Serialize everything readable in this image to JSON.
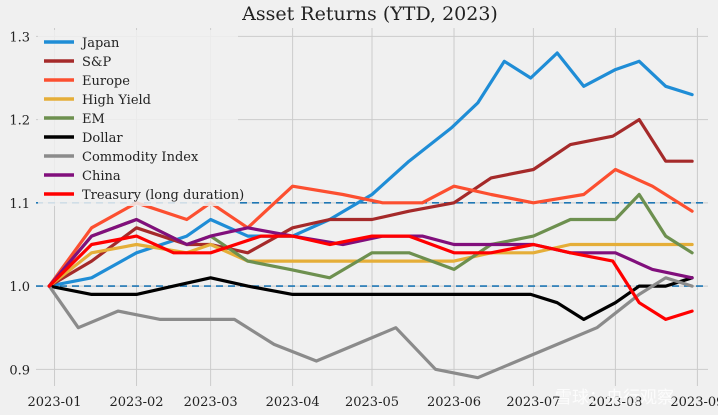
{
  "chart_data": {
    "type": "line",
    "title": "Asset Returns (YTD, 2023)",
    "xlabel": "",
    "ylabel": "",
    "x_ticks": [
      "2023-01",
      "2023-02",
      "2023-03",
      "2023-04",
      "2023-05",
      "2023-06",
      "2023-07",
      "2023-08",
      "2023-09"
    ],
    "x_range": [
      "2022-12-25",
      "2023-09-05"
    ],
    "ylim": [
      0.88,
      1.31
    ],
    "y_ticks": [
      "0.9",
      "1.0",
      "1.1",
      "1.2",
      "1.3"
    ],
    "y_tick_values": [
      0.9,
      1.0,
      1.1,
      1.2,
      1.3
    ],
    "grid": true,
    "legend_position": "top-left",
    "reference_lines": [
      {
        "y": 1.0,
        "style": "dashed",
        "color": "#1f77b4"
      },
      {
        "y": 1.1,
        "style": "dashed",
        "color": "#1f77b4"
      }
    ],
    "series": [
      {
        "name": "Japan",
        "color": "#1f8dd6",
        "points": [
          [
            "2022-12-30",
            1.0
          ],
          [
            "2023-01-15",
            1.01
          ],
          [
            "2023-02-01",
            1.04
          ],
          [
            "2023-02-20",
            1.06
          ],
          [
            "2023-03-01",
            1.08
          ],
          [
            "2023-03-15",
            1.06
          ],
          [
            "2023-04-01",
            1.06
          ],
          [
            "2023-04-15",
            1.08
          ],
          [
            "2023-05-01",
            1.11
          ],
          [
            "2023-05-15",
            1.15
          ],
          [
            "2023-05-31",
            1.19
          ],
          [
            "2023-06-10",
            1.22
          ],
          [
            "2023-06-20",
            1.27
          ],
          [
            "2023-06-30",
            1.25
          ],
          [
            "2023-07-10",
            1.28
          ],
          [
            "2023-07-20",
            1.24
          ],
          [
            "2023-08-01",
            1.26
          ],
          [
            "2023-08-10",
            1.27
          ],
          [
            "2023-08-20",
            1.24
          ],
          [
            "2023-08-30",
            1.23
          ]
        ]
      },
      {
        "name": "S&P",
        "color": "#a52a2a",
        "points": [
          [
            "2022-12-30",
            1.0
          ],
          [
            "2023-01-15",
            1.03
          ],
          [
            "2023-02-01",
            1.07
          ],
          [
            "2023-02-20",
            1.05
          ],
          [
            "2023-03-01",
            1.05
          ],
          [
            "2023-03-15",
            1.04
          ],
          [
            "2023-04-01",
            1.07
          ],
          [
            "2023-04-15",
            1.08
          ],
          [
            "2023-05-01",
            1.08
          ],
          [
            "2023-05-15",
            1.09
          ],
          [
            "2023-06-01",
            1.1
          ],
          [
            "2023-06-15",
            1.13
          ],
          [
            "2023-07-01",
            1.14
          ],
          [
            "2023-07-15",
            1.17
          ],
          [
            "2023-07-31",
            1.18
          ],
          [
            "2023-08-10",
            1.2
          ],
          [
            "2023-08-20",
            1.15
          ],
          [
            "2023-08-30",
            1.15
          ]
        ]
      },
      {
        "name": "Europe",
        "color": "#fc4f30",
        "points": [
          [
            "2022-12-30",
            1.0
          ],
          [
            "2023-01-15",
            1.07
          ],
          [
            "2023-02-01",
            1.1
          ],
          [
            "2023-02-20",
            1.08
          ],
          [
            "2023-03-01",
            1.1
          ],
          [
            "2023-03-15",
            1.07
          ],
          [
            "2023-04-01",
            1.12
          ],
          [
            "2023-04-20",
            1.11
          ],
          [
            "2023-05-05",
            1.1
          ],
          [
            "2023-05-20",
            1.1
          ],
          [
            "2023-06-01",
            1.12
          ],
          [
            "2023-06-15",
            1.11
          ],
          [
            "2023-07-01",
            1.1
          ],
          [
            "2023-07-20",
            1.11
          ],
          [
            "2023-08-01",
            1.14
          ],
          [
            "2023-08-15",
            1.12
          ],
          [
            "2023-08-30",
            1.09
          ]
        ]
      },
      {
        "name": "High Yield",
        "color": "#e5ae38",
        "points": [
          [
            "2022-12-30",
            1.0
          ],
          [
            "2023-01-15",
            1.04
          ],
          [
            "2023-02-01",
            1.05
          ],
          [
            "2023-02-20",
            1.04
          ],
          [
            "2023-03-01",
            1.05
          ],
          [
            "2023-03-15",
            1.03
          ],
          [
            "2023-04-01",
            1.03
          ],
          [
            "2023-04-15",
            1.03
          ],
          [
            "2023-05-01",
            1.03
          ],
          [
            "2023-05-15",
            1.03
          ],
          [
            "2023-06-01",
            1.03
          ],
          [
            "2023-06-15",
            1.04
          ],
          [
            "2023-07-01",
            1.04
          ],
          [
            "2023-07-15",
            1.05
          ],
          [
            "2023-08-01",
            1.05
          ],
          [
            "2023-08-15",
            1.05
          ],
          [
            "2023-08-30",
            1.05
          ]
        ]
      },
      {
        "name": "EM",
        "color": "#6d904f",
        "points": [
          [
            "2022-12-30",
            1.0
          ],
          [
            "2023-01-15",
            1.06
          ],
          [
            "2023-02-01",
            1.08
          ],
          [
            "2023-02-20",
            1.05
          ],
          [
            "2023-03-01",
            1.06
          ],
          [
            "2023-03-15",
            1.03
          ],
          [
            "2023-03-31",
            1.02
          ],
          [
            "2023-04-15",
            1.01
          ],
          [
            "2023-05-01",
            1.04
          ],
          [
            "2023-05-15",
            1.04
          ],
          [
            "2023-06-01",
            1.02
          ],
          [
            "2023-06-15",
            1.05
          ],
          [
            "2023-07-01",
            1.06
          ],
          [
            "2023-07-15",
            1.08
          ],
          [
            "2023-08-01",
            1.08
          ],
          [
            "2023-08-10",
            1.11
          ],
          [
            "2023-08-20",
            1.06
          ],
          [
            "2023-08-30",
            1.04
          ]
        ]
      },
      {
        "name": "Dollar",
        "color": "#000000",
        "points": [
          [
            "2022-12-30",
            1.0
          ],
          [
            "2023-01-15",
            0.99
          ],
          [
            "2023-02-01",
            0.99
          ],
          [
            "2023-02-15",
            1.0
          ],
          [
            "2023-03-01",
            1.01
          ],
          [
            "2023-03-15",
            1.0
          ],
          [
            "2023-04-01",
            0.99
          ],
          [
            "2023-04-15",
            0.99
          ],
          [
            "2023-05-01",
            0.99
          ],
          [
            "2023-05-15",
            0.99
          ],
          [
            "2023-06-01",
            0.99
          ],
          [
            "2023-06-15",
            0.99
          ],
          [
            "2023-06-30",
            0.99
          ],
          [
            "2023-07-10",
            0.98
          ],
          [
            "2023-07-20",
            0.96
          ],
          [
            "2023-08-01",
            0.98
          ],
          [
            "2023-08-10",
            1.0
          ],
          [
            "2023-08-20",
            1.0
          ],
          [
            "2023-08-30",
            1.01
          ]
        ]
      },
      {
        "name": "Commodity Index",
        "color": "#8b8b8b",
        "points": [
          [
            "2022-12-30",
            1.0
          ],
          [
            "2023-01-10",
            0.95
          ],
          [
            "2023-01-25",
            0.97
          ],
          [
            "2023-02-10",
            0.96
          ],
          [
            "2023-02-25",
            0.96
          ],
          [
            "2023-03-10",
            0.96
          ],
          [
            "2023-03-25",
            0.93
          ],
          [
            "2023-04-10",
            0.91
          ],
          [
            "2023-04-25",
            0.93
          ],
          [
            "2023-05-10",
            0.95
          ],
          [
            "2023-05-25",
            0.9
          ],
          [
            "2023-06-10",
            0.89
          ],
          [
            "2023-06-25",
            0.91
          ],
          [
            "2023-07-10",
            0.93
          ],
          [
            "2023-07-25",
            0.95
          ],
          [
            "2023-08-10",
            0.99
          ],
          [
            "2023-08-20",
            1.01
          ],
          [
            "2023-08-30",
            1.0
          ]
        ]
      },
      {
        "name": "China",
        "color": "#810f7c",
        "points": [
          [
            "2022-12-30",
            1.0
          ],
          [
            "2023-01-15",
            1.06
          ],
          [
            "2023-02-01",
            1.08
          ],
          [
            "2023-02-20",
            1.05
          ],
          [
            "2023-03-01",
            1.06
          ],
          [
            "2023-03-15",
            1.07
          ],
          [
            "2023-04-01",
            1.06
          ],
          [
            "2023-04-20",
            1.05
          ],
          [
            "2023-05-05",
            1.06
          ],
          [
            "2023-05-20",
            1.06
          ],
          [
            "2023-06-01",
            1.05
          ],
          [
            "2023-06-15",
            1.05
          ],
          [
            "2023-07-01",
            1.05
          ],
          [
            "2023-07-15",
            1.04
          ],
          [
            "2023-08-01",
            1.04
          ],
          [
            "2023-08-15",
            1.02
          ],
          [
            "2023-08-30",
            1.01
          ]
        ]
      },
      {
        "name": "Treasury (long duration)",
        "color": "#ff0000",
        "points": [
          [
            "2022-12-30",
            1.0
          ],
          [
            "2023-01-15",
            1.05
          ],
          [
            "2023-02-01",
            1.06
          ],
          [
            "2023-02-15",
            1.04
          ],
          [
            "2023-03-01",
            1.04
          ],
          [
            "2023-03-20",
            1.06
          ],
          [
            "2023-04-01",
            1.06
          ],
          [
            "2023-04-15",
            1.05
          ],
          [
            "2023-05-01",
            1.06
          ],
          [
            "2023-05-15",
            1.06
          ],
          [
            "2023-06-01",
            1.04
          ],
          [
            "2023-06-15",
            1.04
          ],
          [
            "2023-07-01",
            1.05
          ],
          [
            "2023-07-15",
            1.04
          ],
          [
            "2023-07-31",
            1.03
          ],
          [
            "2023-08-10",
            0.98
          ],
          [
            "2023-08-20",
            0.96
          ],
          [
            "2023-08-30",
            0.97
          ]
        ]
      }
    ]
  },
  "watermark": {
    "text": "雪球：央行观察"
  }
}
